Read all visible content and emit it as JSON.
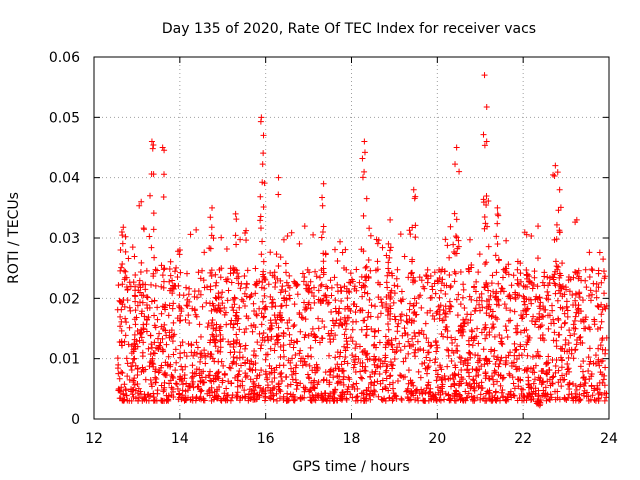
{
  "chart_data": {
    "type": "scatter",
    "title": "Day 135 of 2020, Rate Of TEC Index for receiver vacs",
    "xlabel": "GPS time / hours",
    "ylabel": "ROTI / TECUs",
    "xlim": [
      12,
      24
    ],
    "ylim": [
      0,
      0.06
    ],
    "x_ticks": [
      "12",
      "14",
      "16",
      "18",
      "20",
      "22",
      "24"
    ],
    "y_ticks": [
      "0",
      "0.01",
      "0.02",
      "0.03",
      "0.04",
      "0.05",
      "0.06"
    ],
    "grid": true,
    "marker": "+",
    "marker_color": "#ff0000",
    "data_x_range": [
      12.55,
      23.95
    ],
    "base_min": 0.003,
    "base_typical_max": 0.025,
    "base_center": 0.011,
    "peaks": [
      {
        "x": 12.65,
        "y": 0.031
      },
      {
        "x": 13.35,
        "y": 0.046
      },
      {
        "x": 13.6,
        "y": 0.045
      },
      {
        "x": 13.1,
        "y": 0.036
      },
      {
        "x": 14.75,
        "y": 0.035
      },
      {
        "x": 15.3,
        "y": 0.034
      },
      {
        "x": 15.9,
        "y": 0.05
      },
      {
        "x": 15.95,
        "y": 0.047
      },
      {
        "x": 16.3,
        "y": 0.04
      },
      {
        "x": 17.35,
        "y": 0.039
      },
      {
        "x": 18.3,
        "y": 0.046
      },
      {
        "x": 18.9,
        "y": 0.033
      },
      {
        "x": 19.45,
        "y": 0.038
      },
      {
        "x": 20.45,
        "y": 0.045
      },
      {
        "x": 21.1,
        "y": 0.057
      },
      {
        "x": 21.15,
        "y": 0.046
      },
      {
        "x": 21.4,
        "y": 0.035
      },
      {
        "x": 22.75,
        "y": 0.042
      },
      {
        "x": 22.85,
        "y": 0.038
      },
      {
        "x": 23.25,
        "y": 0.033
      },
      {
        "x": 22.35,
        "y": 0.003
      }
    ]
  }
}
